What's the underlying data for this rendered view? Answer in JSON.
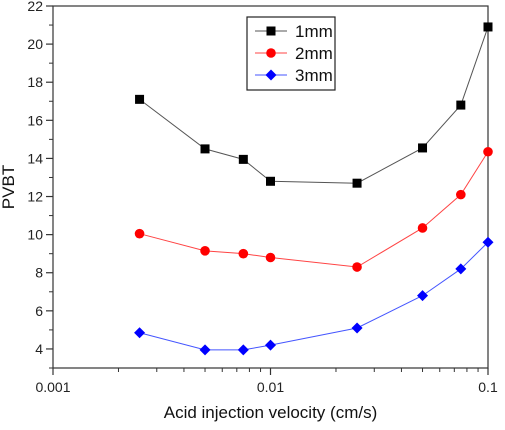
{
  "chart_data": {
    "type": "line",
    "xlabel": "Acid injection velocity (cm/s)",
    "ylabel": "PVBT",
    "xscale": "log",
    "xlim": [
      0.001,
      0.1
    ],
    "ylim": [
      3,
      22
    ],
    "x_ticks": [
      {
        "value": 0.001,
        "label": "0.001"
      },
      {
        "value": 0.01,
        "label": "0.01"
      },
      {
        "value": 0.1,
        "label": "0.1"
      }
    ],
    "y_ticks": [
      {
        "value": 4,
        "label": "4"
      },
      {
        "value": 6,
        "label": "6"
      },
      {
        "value": 8,
        "label": "8"
      },
      {
        "value": 10,
        "label": "10"
      },
      {
        "value": 12,
        "label": "12"
      },
      {
        "value": 14,
        "label": "14"
      },
      {
        "value": 16,
        "label": "16"
      },
      {
        "value": 18,
        "label": "18"
      },
      {
        "value": 20,
        "label": "20"
      },
      {
        "value": 22,
        "label": "22"
      }
    ],
    "grid": false,
    "legend_position": "top-center",
    "series": [
      {
        "name": "1mm",
        "marker": "square",
        "marker_color": "#000000",
        "line_color": "#555555",
        "x": [
          0.0025,
          0.005,
          0.0075,
          0.01,
          0.025,
          0.05,
          0.075,
          0.1
        ],
        "y": [
          17.1,
          14.5,
          13.95,
          12.8,
          12.7,
          14.55,
          16.8,
          20.9
        ]
      },
      {
        "name": "2mm",
        "marker": "circle",
        "marker_color": "#ff0000",
        "line_color": "#ff4444",
        "x": [
          0.0025,
          0.005,
          0.0075,
          0.01,
          0.025,
          0.05,
          0.075,
          0.1
        ],
        "y": [
          10.05,
          9.15,
          9.0,
          8.8,
          8.3,
          10.35,
          12.1,
          14.35
        ]
      },
      {
        "name": "3mm",
        "marker": "diamond",
        "marker_color": "#0000ff",
        "line_color": "#4455ff",
        "x": [
          0.0025,
          0.005,
          0.0075,
          0.01,
          0.025,
          0.05,
          0.075,
          0.1
        ],
        "y": [
          4.85,
          3.95,
          3.95,
          4.2,
          5.1,
          6.8,
          8.2,
          9.6
        ]
      }
    ]
  }
}
